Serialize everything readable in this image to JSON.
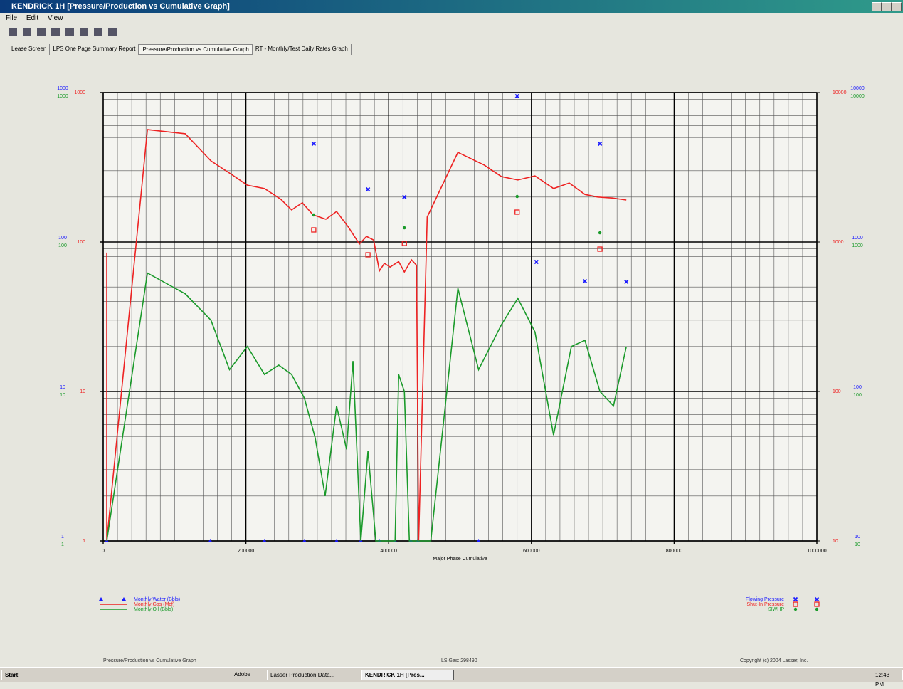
{
  "window": {
    "title": "KENDRICK 1H [Pressure/Production vs Cumulative Graph]",
    "menu": [
      "File",
      "Edit",
      "View"
    ],
    "tabs": [
      "Lease Screen",
      "LPS One Page Summary Report",
      "Pressure/Production vs Cumulative Graph",
      "RT - Monthly/Test Daily Rates Graph"
    ]
  },
  "chart_data": {
    "type": "line",
    "xlabel": "Major Phase Cumulative",
    "xlim": [
      0,
      1000000
    ],
    "xticks": [
      0,
      200000,
      400000,
      600000,
      800000,
      1000000
    ],
    "ylim": [
      1,
      1000
    ],
    "yticks": [
      1,
      10,
      100,
      1000
    ],
    "y2lim": [
      10,
      10000
    ],
    "y2ticks": [
      10,
      100,
      1000,
      10000
    ],
    "log_scale": true,
    "grid": true,
    "series": [
      {
        "name": "Monthly Water (Bbls)",
        "color": "#1a1aff",
        "style": "markers",
        "marker": "triangle",
        "x": [
          5000,
          150000,
          226000,
          282000,
          327000,
          361000,
          387000,
          409000,
          431000,
          441000,
          526000
        ],
        "values": [
          1,
          1,
          1,
          1,
          1,
          1,
          1,
          1,
          1,
          1,
          1
        ]
      },
      {
        "name": "Monthly Gas (Mcf)",
        "color": "#ee2222",
        "style": "line",
        "x": [
          5000,
          5000,
          62000,
          115000,
          151000,
          180000,
          202000,
          226000,
          249000,
          264000,
          279000,
          294000,
          312000,
          327000,
          344000,
          359000,
          369000,
          379000,
          387000,
          394000,
          402000,
          414000,
          422000,
          432000,
          439000,
          442000,
          454000,
          497000,
          534000,
          558000,
          581000,
          605000,
          631000,
          653000,
          675000,
          693000,
          713000,
          733000
        ],
        "values": [
          85,
          1,
          565,
          530,
          349,
          283,
          240,
          228,
          193,
          164,
          183,
          152,
          142,
          160,
          125,
          97,
          109,
          103,
          64,
          72,
          68,
          74,
          63,
          76,
          70,
          1,
          147,
          398,
          327,
          274,
          260,
          277,
          228,
          248,
          208,
          200,
          197,
          191
        ]
      },
      {
        "name": "Monthly Oil (Bbls)",
        "color": "#1a9a2a",
        "style": "line",
        "x": [
          5000,
          62000,
          115000,
          151000,
          177000,
          202000,
          226000,
          246000,
          264000,
          282000,
          297000,
          311000,
          327000,
          341000,
          350000,
          361000,
          371000,
          382000,
          409000,
          414000,
          422000,
          429000,
          459000,
          497000,
          526000,
          558000,
          581000,
          605000,
          631000,
          656000,
          675000,
          696000,
          715000,
          733000
        ],
        "values": [
          1,
          62,
          45,
          30,
          14,
          20,
          13,
          15,
          13,
          9,
          4.9,
          2,
          8,
          4.1,
          16,
          1,
          4,
          1,
          1,
          13,
          10,
          1,
          1,
          49,
          14,
          28,
          42,
          25,
          5.1,
          20,
          22,
          10,
          8,
          20
        ]
      },
      {
        "name": "Flowing Pressure",
        "color": "#1a1aff",
        "style": "markers",
        "marker": "x",
        "axis": "y2",
        "x": [
          295000,
          371000,
          422000,
          580000,
          607000,
          675000,
          696000,
          733000
        ],
        "values": [
          4540,
          2250,
          2000,
          9470,
          736,
          547,
          4540,
          541
        ]
      },
      {
        "name": "Shut-In Pressure",
        "color": "#ee2222",
        "style": "markers",
        "marker": "square",
        "axis": "y2",
        "x": [
          295000,
          371000,
          422000,
          580000,
          696000
        ],
        "values": [
          1205,
          821,
          978,
          1585,
          896
        ]
      },
      {
        "name": "SIWHP",
        "color": "#1a9a2a",
        "style": "markers",
        "marker": "star",
        "axis": "y2",
        "x": [
          295000,
          422000,
          580000,
          696000
        ],
        "values": [
          1517,
          1245,
          2017,
          1153
        ]
      }
    ]
  },
  "footer": {
    "left": "Pressure/Production vs Cumulative Graph",
    "center": "LS Gas: 298490",
    "right": "Copyright (c) 2004 Lasser, Inc."
  },
  "taskbar": {
    "start": "Start",
    "items": [
      "Adobe",
      "Lasser Production Data...",
      "KENDRICK 1H [Pres..."
    ],
    "clock": "12:43 PM"
  }
}
